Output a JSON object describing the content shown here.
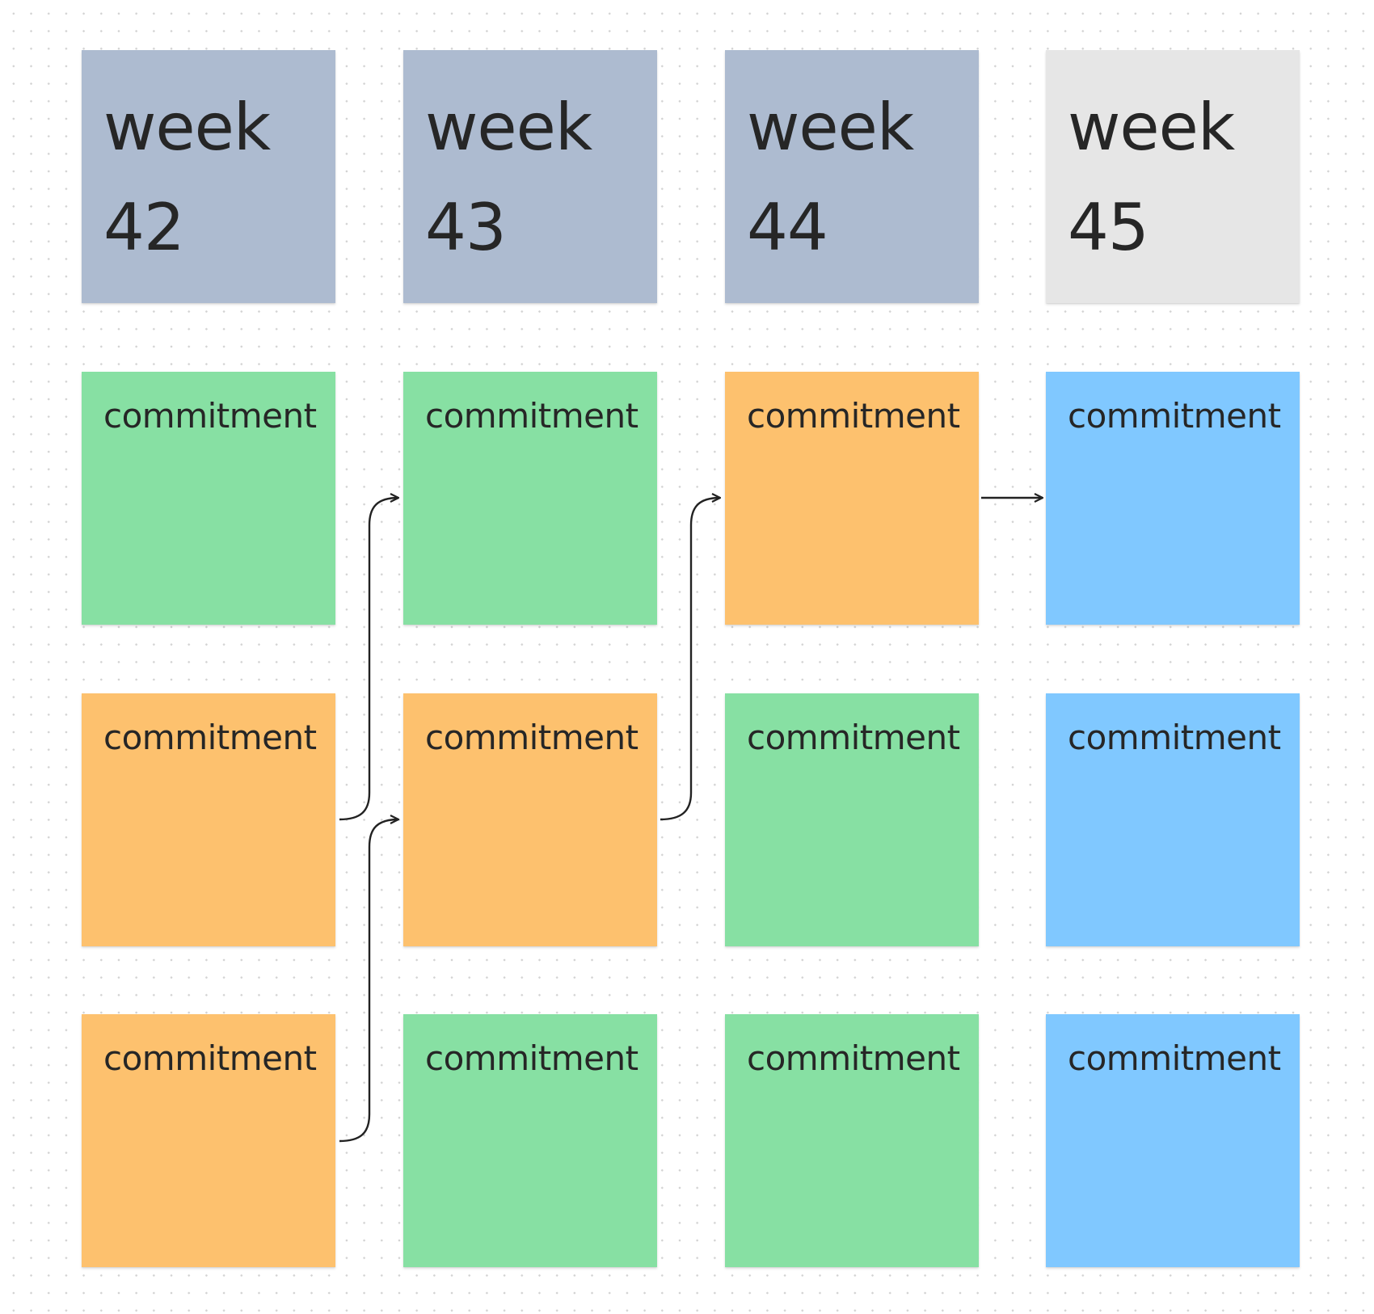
{
  "columns": [
    {
      "header": {
        "title": "week",
        "number": "42",
        "color": "#adbbd0"
      },
      "stickies": [
        {
          "label": "commitment",
          "color": "#87e0a3"
        },
        {
          "label": "commitment",
          "color": "#fdc16e"
        },
        {
          "label": "commitment",
          "color": "#fdc16e"
        }
      ]
    },
    {
      "header": {
        "title": "week",
        "number": "43",
        "color": "#adbbd0"
      },
      "stickies": [
        {
          "label": "commitment",
          "color": "#87e0a3"
        },
        {
          "label": "commitment",
          "color": "#fdc16e"
        },
        {
          "label": "commitment",
          "color": "#87e0a3"
        }
      ]
    },
    {
      "header": {
        "title": "week",
        "number": "44",
        "color": "#adbbd0"
      },
      "stickies": [
        {
          "label": "commitment",
          "color": "#fdc16e"
        },
        {
          "label": "commitment",
          "color": "#87e0a3"
        },
        {
          "label": "commitment",
          "color": "#87e0a3"
        }
      ]
    },
    {
      "header": {
        "title": "week",
        "number": "45",
        "color": "#e6e6e6"
      },
      "stickies": [
        {
          "label": "commitment",
          "color": "#80c8ff"
        },
        {
          "label": "commitment",
          "color": "#80c8ff"
        },
        {
          "label": "commitment",
          "color": "#80c8ff"
        }
      ]
    }
  ]
}
